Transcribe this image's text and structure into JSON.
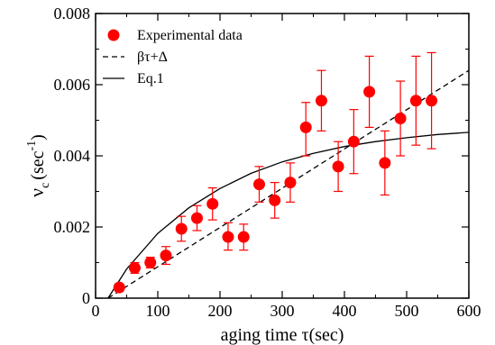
{
  "chart_data": {
    "type": "scatter",
    "title": "",
    "xlabel": "aging time τ(sec)",
    "ylabel_main": "ν",
    "ylabel_sub": "c",
    "ylabel_unit": "(sec",
    "ylabel_exp": "-1",
    "ylabel_close": ")",
    "xlim": [
      0,
      600
    ],
    "ylim": [
      0,
      0.008
    ],
    "x_ticks": [
      0,
      100,
      200,
      300,
      400,
      500,
      600
    ],
    "x_tick_labels": [
      "0",
      "100",
      "200",
      "300",
      "400",
      "500",
      "600"
    ],
    "y_ticks": [
      0,
      0.002,
      0.004,
      0.006,
      0.008
    ],
    "y_tick_labels": [
      "0",
      "0.002",
      "0.004",
      "0.006",
      "0.008"
    ],
    "grid": false,
    "legend_position": "top-left",
    "legend": [
      {
        "label": "Experimental data",
        "kind": "marker"
      },
      {
        "label": "βτ+Δ",
        "kind": "dashed"
      },
      {
        "label": "Eq.1",
        "kind": "solid"
      }
    ],
    "colors": {
      "data": "#ff0000",
      "lines": "#000000"
    },
    "series": [
      {
        "name": "Experimental data",
        "kind": "points",
        "x": [
          38,
          63,
          88,
          113,
          138,
          163,
          188,
          213,
          238,
          263,
          288,
          313,
          338,
          363,
          390,
          415,
          440,
          465,
          490,
          515,
          540
        ],
        "y": [
          0.0003,
          0.00085,
          0.001,
          0.0012,
          0.00195,
          0.00225,
          0.00265,
          0.00172,
          0.00172,
          0.0032,
          0.00275,
          0.00325,
          0.0048,
          0.00555,
          0.0037,
          0.0044,
          0.0058,
          0.0038,
          0.00505,
          0.00555,
          0.00555
        ],
        "y_low": [
          0.0002,
          0.0007,
          0.00085,
          0.00095,
          0.0016,
          0.0019,
          0.0022,
          0.00135,
          0.00135,
          0.0027,
          0.00225,
          0.0027,
          0.004,
          0.0047,
          0.003,
          0.0035,
          0.0048,
          0.0029,
          0.004,
          0.0043,
          0.0042
        ],
        "y_high": [
          0.0004,
          0.001,
          0.00115,
          0.00145,
          0.0023,
          0.0026,
          0.0031,
          0.00212,
          0.00208,
          0.0037,
          0.00325,
          0.0038,
          0.0055,
          0.0064,
          0.0044,
          0.0053,
          0.0068,
          0.0047,
          0.0061,
          0.0068,
          0.0069
        ]
      },
      {
        "name": "βτ+Δ",
        "kind": "dashed-line",
        "x": [
          20,
          600
        ],
        "y": [
          0.0,
          0.0064
        ]
      },
      {
        "name": "Eq.1",
        "kind": "solid-line",
        "x": [
          20,
          50,
          100,
          150,
          200,
          250,
          300,
          350,
          400,
          450,
          500,
          550,
          600
        ],
        "y": [
          0.0,
          0.00082,
          0.00182,
          0.00254,
          0.00308,
          0.00351,
          0.00383,
          0.00407,
          0.00426,
          0.0044,
          0.00451,
          0.0046,
          0.00466
        ]
      }
    ]
  }
}
